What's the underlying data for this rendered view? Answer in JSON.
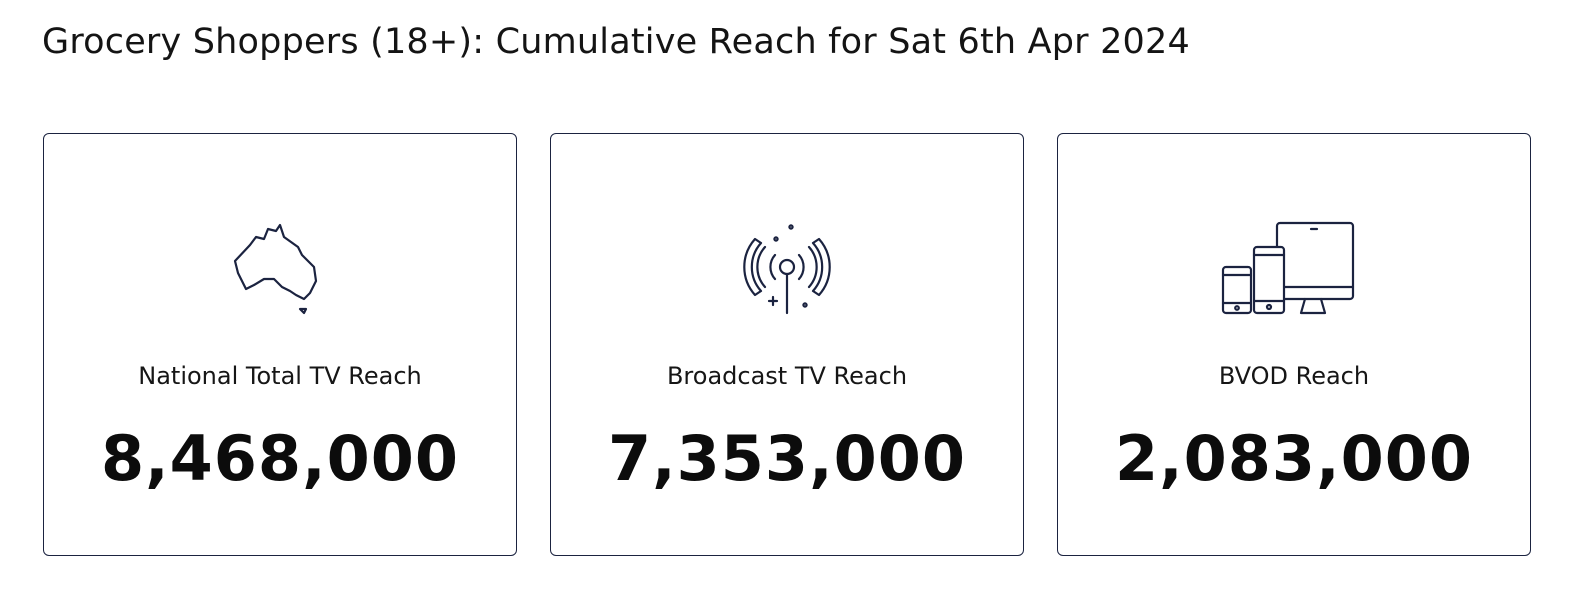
{
  "header": {
    "title": "Grocery Shoppers (18+): Cumulative Reach for Sat 6th Apr 2024"
  },
  "cards": [
    {
      "label": "National Total TV Reach",
      "value": "8,468,000"
    },
    {
      "label": "Broadcast TV Reach",
      "value": "7,353,000"
    },
    {
      "label": "BVOD Reach",
      "value": "2,083,000"
    }
  ]
}
